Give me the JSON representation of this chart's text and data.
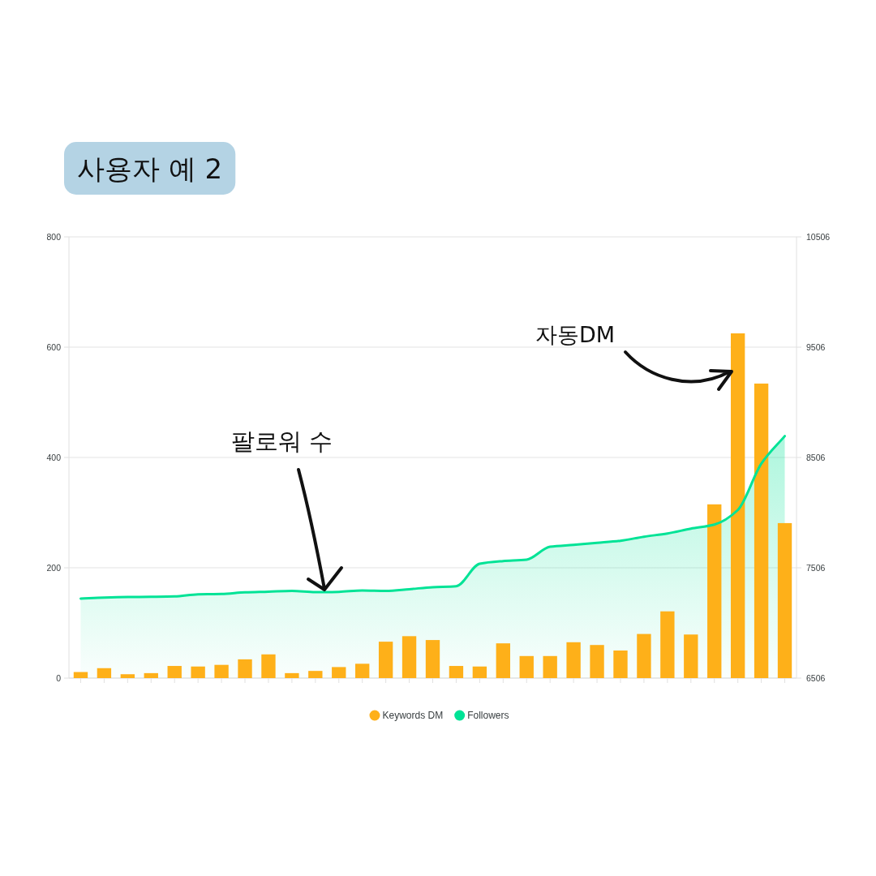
{
  "chart_data": {
    "type": "bar",
    "title": "사용자 예 2",
    "categories": [
      null,
      null,
      null,
      null,
      null,
      null,
      null,
      null,
      null,
      null,
      null,
      null,
      null,
      null,
      null,
      null,
      null,
      null,
      null,
      null,
      null,
      null,
      null,
      null,
      null,
      null,
      null,
      null,
      null,
      null,
      null
    ],
    "series": [
      {
        "name": "Keywords DM",
        "color": "#feb019",
        "values": [
          11,
          18,
          7,
          9,
          22,
          21,
          24,
          34,
          43,
          9,
          13,
          20,
          26,
          66,
          76,
          69,
          22,
          21,
          63,
          40,
          40,
          65,
          60,
          50,
          80,
          121,
          79,
          315,
          625,
          534,
          281
        ]
      },
      {
        "name": "Followers",
        "type": "area",
        "axis": "y2",
        "color": "#00e396",
        "values": [
          7227,
          7236,
          7241,
          7243,
          7246,
          7266,
          7269,
          7283,
          7289,
          7296,
          7285,
          7288,
          7300,
          7296,
          7312,
          7330,
          7339,
          7543,
          7567,
          7580,
          7697,
          7714,
          7732,
          7751,
          7788,
          7817,
          7861,
          7898,
          8030,
          8450,
          8700
        ]
      }
    ],
    "ylim": [
      0,
      800
    ],
    "yticks": [
      0,
      200,
      400,
      600,
      800
    ],
    "y2lim": [
      6506,
      10506
    ],
    "y2ticks": [
      6506,
      7506,
      8506,
      9506,
      10506
    ],
    "grid": "y",
    "legend": "bottom",
    "annotations": [
      "팔로워 수",
      "자동DM"
    ]
  }
}
